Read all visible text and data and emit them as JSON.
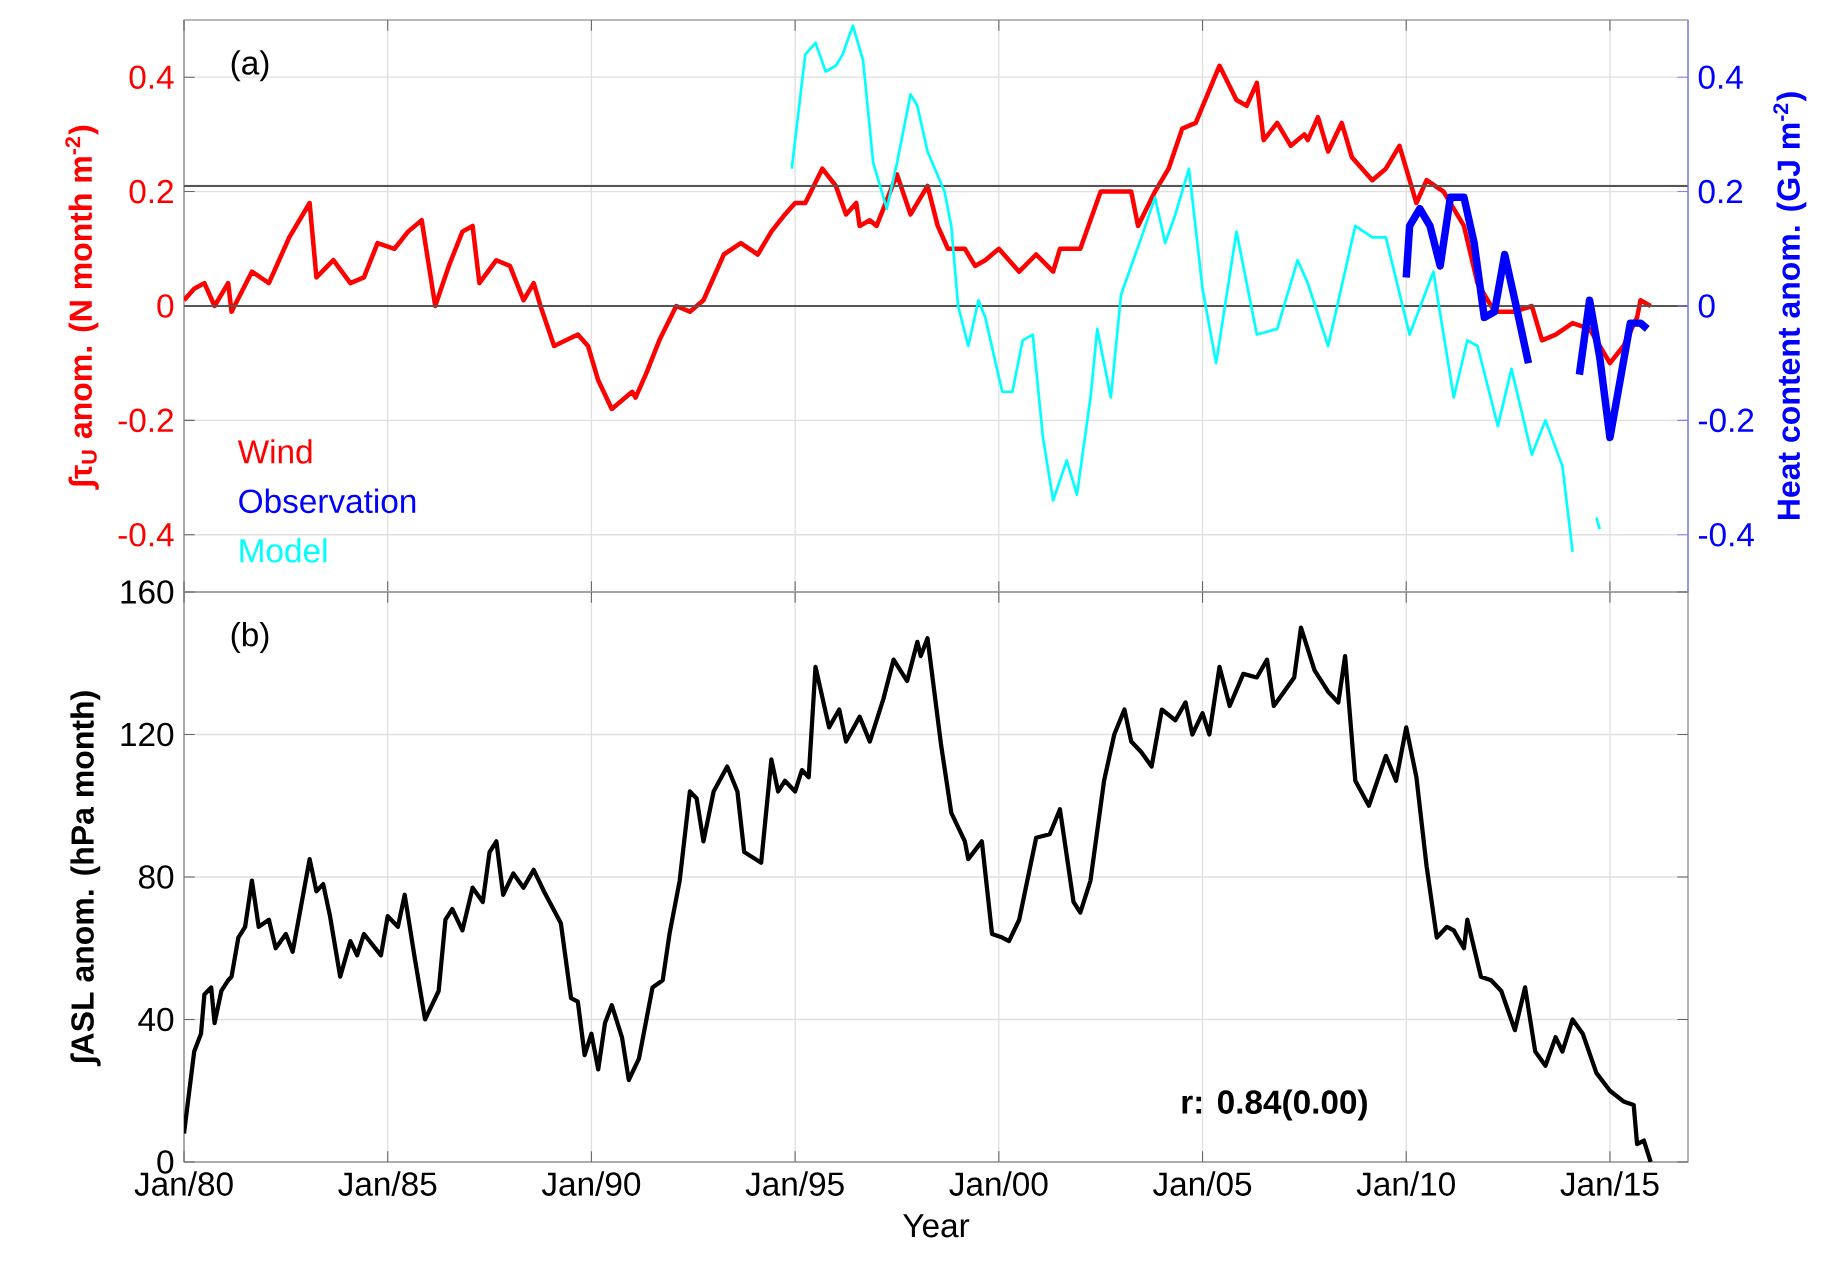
{
  "chart_data": [
    {
      "type": "line",
      "xlim": [
        "1980-01",
        "2016-12"
      ],
      "xticks": [
        {
          "value": "1980-01",
          "label": null
        },
        {
          "value": "1985-01",
          "label": null
        },
        {
          "value": "1990-01",
          "label": null
        },
        {
          "value": "1995-01",
          "label": null
        },
        {
          "value": "2000-01",
          "label": null
        },
        {
          "value": "2005-01",
          "label": null
        },
        {
          "value": "2010-01",
          "label": null
        },
        {
          "value": "2015-01",
          "label": null
        }
      ],
      "ylim": [
        -0.5,
        0.5
      ],
      "yticks": [
        -0.4,
        -0.2,
        0,
        0.2,
        0.4
      ],
      "y2lim": [
        -0.5,
        0.5
      ],
      "y2ticks": [
        -0.4,
        -0.2,
        0,
        0.2,
        0.4
      ],
      "ylabel": "∫τ$_{U}$ anom. (N month m$^{-2}$)",
      "y2label": "Heat content anom. (GJ m$^{-2}$)",
      "annotations": [
        "(a)"
      ],
      "ref_lines": [
        {
          "axis": "y",
          "value": 0,
          "color": "#555555"
        },
        {
          "axis": "y",
          "value": 0.21,
          "color": "#555555"
        }
      ],
      "grid": true,
      "legend": "bottom left",
      "tick_labels": "y",
      "series": [
        {
          "name": "Wind",
          "color": "#ff0000",
          "x": [
            "1980-01",
            "1980-04",
            "1980-07",
            "1980-10",
            "1981-02",
            "1981-03",
            "1981-09",
            "1982-02",
            "1982-05",
            "1982-08",
            "1983-02",
            "1983-04",
            "1983-09",
            "1984-02",
            "1984-06",
            "1984-10",
            "1985-03",
            "1985-07",
            "1985-11",
            "1986-03",
            "1986-07",
            "1986-11",
            "1987-02",
            "1987-04",
            "1987-09",
            "1988-01",
            "1988-05",
            "1988-08",
            "1988-10",
            "1989-02",
            "1989-09",
            "1989-12",
            "1990-03",
            "1990-07",
            "1991-01",
            "1991-02",
            "1991-05",
            "1991-09",
            "1992-02",
            "1992-06",
            "1992-10",
            "1993-04",
            "1993-09",
            "1994-02",
            "1994-06",
            "1994-10",
            "1995-01",
            "1995-04",
            "1995-09",
            "1996-01",
            "1996-04",
            "1996-07",
            "1996-08",
            "1996-11",
            "1997-01",
            "1997-07",
            "1997-11",
            "1998-04",
            "1998-07",
            "1998-10",
            "1999-03",
            "1999-06",
            "1999-09",
            "2000-01",
            "2000-07",
            "2000-12",
            "2001-05",
            "2001-07",
            "2002-01",
            "2002-07",
            "2002-10",
            "2003-04",
            "2003-06",
            "2003-11",
            "2004-03",
            "2004-07",
            "2004-11",
            "2005-06",
            "2005-11",
            "2006-02",
            "2006-05",
            "2006-07",
            "2006-11",
            "2007-03",
            "2007-07",
            "2007-08",
            "2007-11",
            "2008-02",
            "2008-06",
            "2008-09",
            "2009-03",
            "2009-07",
            "2009-11",
            "2010-04",
            "2010-07",
            "2010-12",
            "2011-06",
            "2011-10",
            "2012-03",
            "2012-09",
            "2013-02",
            "2013-05",
            "2013-09",
            "2014-02",
            "2014-07",
            "2014-10",
            "2015-01",
            "2015-05",
            "2015-09",
            "2015-10",
            "2016-01"
          ],
          "values": [
            0.01,
            0.03,
            0.04,
            0.0,
            0.04,
            -0.01,
            0.06,
            0.04,
            0.08,
            0.12,
            0.18,
            0.05,
            0.08,
            0.04,
            0.05,
            0.11,
            0.1,
            0.13,
            0.15,
            0.0,
            0.07,
            0.13,
            0.14,
            0.04,
            0.08,
            0.07,
            0.01,
            0.04,
            0.0,
            -0.07,
            -0.05,
            -0.07,
            -0.13,
            -0.18,
            -0.15,
            -0.16,
            -0.12,
            -0.06,
            0.0,
            -0.01,
            0.01,
            0.09,
            0.11,
            0.09,
            0.13,
            0.16,
            0.18,
            0.18,
            0.24,
            0.21,
            0.16,
            0.18,
            0.14,
            0.15,
            0.14,
            0.23,
            0.16,
            0.21,
            0.14,
            0.1,
            0.1,
            0.07,
            0.08,
            0.1,
            0.06,
            0.09,
            0.06,
            0.1,
            0.1,
            0.2,
            0.2,
            0.2,
            0.14,
            0.2,
            0.24,
            0.31,
            0.32,
            0.42,
            0.36,
            0.35,
            0.39,
            0.29,
            0.32,
            0.28,
            0.3,
            0.29,
            0.33,
            0.27,
            0.32,
            0.26,
            0.22,
            0.24,
            0.28,
            0.18,
            0.22,
            0.2,
            0.14,
            0.04,
            -0.01,
            -0.01,
            0.0,
            -0.06,
            -0.05,
            -0.03,
            -0.04,
            -0.07,
            -0.1,
            -0.07,
            -0.02,
            0.01,
            0.0
          ]
        },
        {
          "name": "Observation",
          "color": "#0000ff",
          "axis": "y2",
          "x": [
            "2010-01",
            "2010-02",
            "2010-05",
            "2010-08",
            "2010-11",
            "2011-02",
            "2011-06",
            "2011-09",
            "2011-12",
            "2012-03",
            "2012-06",
            "2012-09",
            "2013-01",
            "2013-08",
            "2014-04",
            "2014-07",
            "2014-10",
            "2015-01",
            "2015-04",
            "2015-07",
            "2015-10",
            "2015-12"
          ],
          "values": [
            0.05,
            0.14,
            0.17,
            0.14,
            0.07,
            0.19,
            0.19,
            0.11,
            -0.02,
            -0.01,
            0.09,
            0.01,
            -0.1,
            null,
            -0.12,
            0.01,
            -0.09,
            -0.23,
            -0.13,
            -0.03,
            -0.03,
            -0.04
          ]
        },
        {
          "name": "Model",
          "color": "#00ffff",
          "axis": "y2",
          "x": [
            "1994-12",
            "1995-04",
            "1995-07",
            "1995-10",
            "1996-01",
            "1996-03",
            "1996-06",
            "1996-09",
            "1996-12",
            "1997-04",
            "1997-07",
            "1997-11",
            "1998-01",
            "1998-04",
            "1998-09",
            "1998-11",
            "1999-01",
            "1999-04",
            "1999-07",
            "1999-09",
            "2000-02",
            "2000-05",
            "2000-08",
            "2000-11",
            "2001-02",
            "2001-05",
            "2001-09",
            "2001-12",
            "2002-04",
            "2002-06",
            "2002-10",
            "2003-01",
            "2003-04",
            "2003-07",
            "2003-11",
            "2004-02",
            "2004-05",
            "2004-09",
            "2005-01",
            "2005-05",
            "2005-11",
            "2006-05",
            "2006-11",
            "2007-05",
            "2007-08",
            "2008-02",
            "2008-10",
            "2009-03",
            "2009-07",
            "2010-02",
            "2010-09",
            "2011-03",
            "2011-07",
            "2011-10",
            "2012-04",
            "2012-08",
            "2013-02",
            "2013-06",
            "2013-11",
            "2014-02",
            "2014-03",
            "2014-07",
            "2014-09",
            "2014-10"
          ],
          "values": [
            0.24,
            0.44,
            0.46,
            0.41,
            0.42,
            0.44,
            0.49,
            0.43,
            0.25,
            0.17,
            0.25,
            0.37,
            0.35,
            0.27,
            0.2,
            0.14,
            0.0,
            -0.07,
            0.01,
            -0.02,
            -0.15,
            -0.15,
            -0.06,
            -0.05,
            -0.23,
            -0.34,
            -0.27,
            -0.33,
            -0.16,
            -0.04,
            -0.16,
            0.02,
            0.07,
            0.12,
            0.19,
            0.11,
            0.16,
            0.24,
            0.03,
            -0.1,
            0.13,
            -0.05,
            -0.04,
            0.08,
            0.04,
            -0.07,
            0.14,
            0.12,
            0.12,
            -0.05,
            0.06,
            -0.16,
            -0.06,
            -0.07,
            -0.21,
            -0.11,
            -0.26,
            -0.2,
            -0.28,
            -0.43,
            null,
            null,
            -0.37,
            -0.39
          ]
        }
      ]
    },
    {
      "type": "line",
      "xlim": [
        "1980-01",
        "2016-12"
      ],
      "xticks": [
        {
          "value": "1980-01",
          "label": "Jan/80"
        },
        {
          "value": "1985-01",
          "label": "Jan/85"
        },
        {
          "value": "1990-01",
          "label": "Jan/90"
        },
        {
          "value": "1995-01",
          "label": "Jan/95"
        },
        {
          "value": "2000-01",
          "label": "Jan/00"
        },
        {
          "value": "2005-01",
          "label": "Jan/05"
        },
        {
          "value": "2010-01",
          "label": "Jan/10"
        },
        {
          "value": "2015-01",
          "label": "Jan/15"
        }
      ],
      "ylim": [
        0,
        160
      ],
      "yticks": [
        0,
        40,
        80,
        120,
        160
      ],
      "xlabel": "Year",
      "ylabel": "∫ASL anom. (hPa month)",
      "annotations": [
        "(b)",
        "r: 0.84(0.00)"
      ],
      "grid": true,
      "series": [
        {
          "color": "#000000",
          "x": [
            "1980-01",
            "1980-04",
            "1980-06",
            "1980-07",
            "1980-09",
            "1980-10",
            "1980-12",
            "1981-02",
            "1981-03",
            "1981-05",
            "1981-07",
            "1981-09",
            "1981-11",
            "1982-02",
            "1982-04",
            "1982-07",
            "1982-09",
            "1983-02",
            "1983-04",
            "1983-06",
            "1983-08",
            "1983-11",
            "1984-02",
            "1984-04",
            "1984-06",
            "1984-11",
            "1985-01",
            "1985-04",
            "1985-06",
            "1985-09",
            "1985-12",
            "1986-04",
            "1986-06",
            "1986-08",
            "1986-11",
            "1987-02",
            "1987-05",
            "1987-07",
            "1987-09",
            "1987-11",
            "1988-02",
            "1988-05",
            "1988-08",
            "1988-11",
            "1989-04",
            "1989-07",
            "1989-09",
            "1989-11",
            "1990-01",
            "1990-03",
            "1990-05",
            "1990-07",
            "1990-10",
            "1990-12",
            "1991-03",
            "1991-07",
            "1991-10",
            "1991-12",
            "1992-03",
            "1992-06",
            "1992-08",
            "1992-10",
            "1993-01",
            "1993-05",
            "1993-08",
            "1993-10",
            "1994-03",
            "1994-06",
            "1994-08",
            "1994-10",
            "1995-01",
            "1995-03",
            "1995-05",
            "1995-07",
            "1995-11",
            "1996-02",
            "1996-04",
            "1996-08",
            "1996-11",
            "1997-03",
            "1997-06",
            "1997-10",
            "1998-01",
            "1998-02",
            "1998-04",
            "1998-08",
            "1998-11",
            "1999-03",
            "1999-04",
            "1999-08",
            "1999-11",
            "2000-02",
            "2000-04",
            "2000-07",
            "2000-12",
            "2001-04",
            "2001-07",
            "2001-11",
            "2002-01",
            "2002-04",
            "2002-08",
            "2002-11",
            "2003-02",
            "2003-04",
            "2003-07",
            "2003-10",
            "2004-01",
            "2004-05",
            "2004-08",
            "2004-10",
            "2005-01",
            "2005-03",
            "2005-06",
            "2005-09",
            "2006-01",
            "2006-05",
            "2006-08",
            "2006-10",
            "2007-04",
            "2007-06",
            "2007-10",
            "2008-02",
            "2008-05",
            "2008-07",
            "2008-10",
            "2009-02",
            "2009-07",
            "2009-10",
            "2010-01",
            "2010-04",
            "2010-07",
            "2010-10",
            "2011-01",
            "2011-03",
            "2011-06",
            "2011-07",
            "2011-11",
            "2012-02",
            "2012-05",
            "2012-09",
            "2012-12",
            "2013-03",
            "2013-06",
            "2013-09",
            "2013-11",
            "2014-02",
            "2014-05",
            "2014-09",
            "2015-01",
            "2015-05",
            "2015-08",
            "2015-09",
            "2015-11",
            "2016-01"
          ],
          "values": [
            8,
            31,
            36,
            47,
            49,
            39,
            48,
            51,
            52,
            63,
            66,
            79,
            66,
            68,
            60,
            64,
            59,
            85,
            76,
            78,
            69,
            52,
            62,
            58,
            64,
            58,
            69,
            66,
            75,
            57,
            40,
            48,
            68,
            71,
            65,
            77,
            73,
            87,
            90,
            75,
            81,
            77,
            82,
            76,
            67,
            46,
            45,
            30,
            36,
            26,
            39,
            44,
            35,
            23,
            29,
            49,
            51,
            64,
            79,
            104,
            102,
            90,
            104,
            111,
            104,
            87,
            84,
            113,
            104,
            107,
            104,
            110,
            108,
            139,
            122,
            127,
            118,
            125,
            118,
            130,
            141,
            135,
            146,
            142,
            147,
            117,
            98,
            90,
            85,
            90,
            64,
            63,
            62,
            68,
            91,
            92,
            99,
            73,
            70,
            79,
            107,
            120,
            127,
            118,
            115,
            111,
            127,
            124,
            129,
            120,
            126,
            120,
            139,
            128,
            137,
            136,
            141,
            128,
            136,
            150,
            138,
            132,
            129,
            142,
            107,
            100,
            114,
            107,
            122,
            108,
            83,
            63,
            66,
            65,
            60,
            68,
            52,
            51,
            48,
            37,
            49,
            31,
            27,
            35,
            31,
            40,
            36,
            25,
            20,
            17,
            16,
            5,
            6,
            0
          ]
        }
      ]
    }
  ]
}
